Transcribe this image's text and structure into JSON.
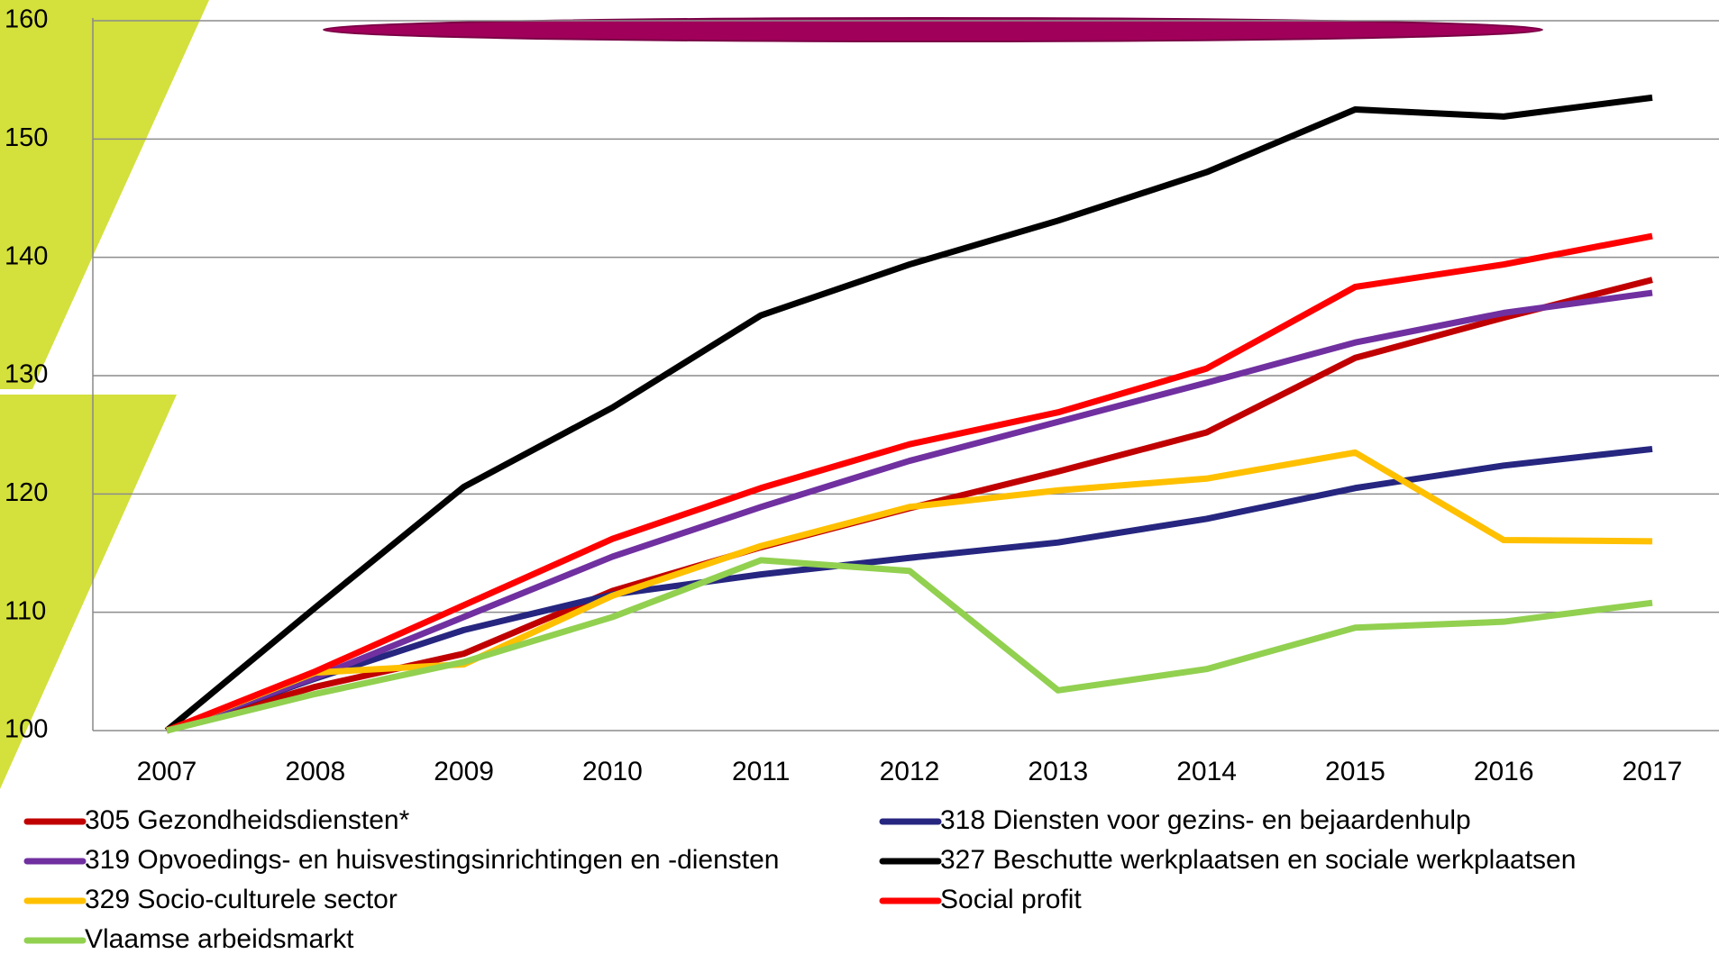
{
  "chart_data": {
    "type": "line",
    "categories": [
      "2007",
      "2008",
      "2009",
      "2010",
      "2011",
      "2012",
      "2013",
      "2014",
      "2015",
      "2016",
      "2017"
    ],
    "series": [
      {
        "name": "305 Gezondheidsdiensten*",
        "color": "#c00000",
        "values": [
          100,
          103.7,
          106.5,
          111.8,
          115.5,
          118.8,
          121.9,
          125.2,
          131.5,
          134.9,
          138.1
        ]
      },
      {
        "name": "318 Diensten voor gezins- en bejaardenhulp",
        "color": "#262680",
        "values": [
          100,
          104.4,
          108.5,
          111.5,
          113.2,
          114.6,
          115.9,
          117.9,
          120.5,
          122.4,
          123.8
        ]
      },
      {
        "name": "319 Opvoedings- en huisvestingsinrichtingen en -diensten",
        "color": "#7030a0",
        "values": [
          100,
          104.5,
          109.6,
          114.7,
          118.9,
          122.8,
          126.1,
          129.4,
          132.8,
          135.3,
          137.0
        ]
      },
      {
        "name": "327 Beschutte werkplaatsen en sociale werkplaatsen",
        "color": "#000000",
        "values": [
          100,
          110.4,
          120.6,
          127.3,
          135.1,
          139.4,
          143.1,
          147.2,
          152.5,
          151.9,
          153.5
        ]
      },
      {
        "name": "329 Socio-culturele sector",
        "color": "#ffc000",
        "values": [
          100,
          104.9,
          105.6,
          111.4,
          115.6,
          118.9,
          120.3,
          121.3,
          123.5,
          116.1,
          116.0
        ]
      },
      {
        "name": "Social profit",
        "color": "#ff0000",
        "values": [
          100,
          105.0,
          110.6,
          116.2,
          120.5,
          124.2,
          126.9,
          130.6,
          137.5,
          139.4,
          141.8
        ]
      },
      {
        "name": "Vlaamse arbeidsmarkt",
        "color": "#92d050",
        "values": [
          100,
          103.1,
          105.8,
          109.6,
          114.4,
          113.5,
          103.4,
          105.2,
          108.7,
          109.2,
          110.8
        ]
      }
    ],
    "ylim": [
      100,
      160
    ],
    "yticks": [
      100,
      110,
      120,
      130,
      140,
      150,
      160
    ],
    "grid": true,
    "legend": "bottom"
  }
}
